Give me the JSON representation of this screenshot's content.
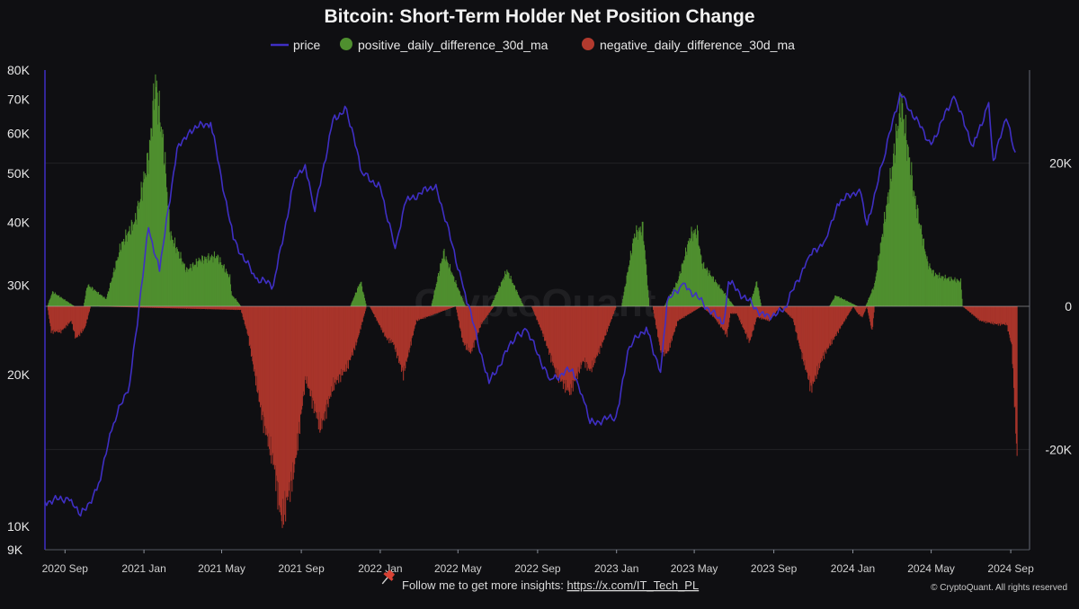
{
  "chart_data": {
    "type": "bar",
    "title": "Bitcoin: Short-Term Holder Net Position Change",
    "legend": {
      "placement": "top-center",
      "entries": [
        {
          "key": "price",
          "label": "price",
          "color": "#3f2fc4",
          "symbol": "line"
        },
        {
          "key": "pos",
          "label": "positive_daily_difference_30d_ma",
          "color": "#4f8f2f",
          "symbol": "circle"
        },
        {
          "key": "neg",
          "label": "negative_daily_difference_30d_ma",
          "color": "#b23a2e",
          "symbol": "circle"
        }
      ]
    },
    "x_axis": {
      "type": "date",
      "range": [
        "2020-08-01",
        "2024-09-30"
      ],
      "ticks": [
        {
          "label": "2020 Sep",
          "date": "2020-09-01"
        },
        {
          "label": "2021 Jan",
          "date": "2021-01-01"
        },
        {
          "label": "2021 May",
          "date": "2021-05-01"
        },
        {
          "label": "2021 Sep",
          "date": "2021-09-01"
        },
        {
          "label": "2022 Jan",
          "date": "2022-01-01"
        },
        {
          "label": "2022 May",
          "date": "2022-05-01"
        },
        {
          "label": "2022 Sep",
          "date": "2022-09-01"
        },
        {
          "label": "2023 Jan",
          "date": "2023-01-01"
        },
        {
          "label": "2023 May",
          "date": "2023-05-01"
        },
        {
          "label": "2023 Sep",
          "date": "2023-09-01"
        },
        {
          "label": "2024 Jan",
          "date": "2024-01-01"
        },
        {
          "label": "2024 May",
          "date": "2024-05-01"
        },
        {
          "label": "2024 Sep",
          "date": "2024-09-01"
        }
      ]
    },
    "y_left": {
      "scale": "log",
      "range": [
        9000,
        80000
      ],
      "ticks": [
        {
          "label": "80K",
          "value": 80000
        },
        {
          "label": "70K",
          "value": 70000
        },
        {
          "label": "60K",
          "value": 60000
        },
        {
          "label": "50K",
          "value": 50000
        },
        {
          "label": "40K",
          "value": 40000
        },
        {
          "label": "30K",
          "value": 30000
        },
        {
          "label": "20K",
          "value": 20000
        },
        {
          "label": "10K",
          "value": 10000
        },
        {
          "label": "9K",
          "value": 9000
        }
      ]
    },
    "y_right": {
      "scale": "linear",
      "range": [
        -34000,
        33000
      ],
      "ticks": [
        {
          "label": "20K",
          "value": 20000
        },
        {
          "label": "0",
          "value": 0
        },
        {
          "label": "-20K",
          "value": -20000
        }
      ]
    },
    "grid": {
      "horizontal": true,
      "vertical": false
    },
    "series": [
      {
        "name": "price",
        "axis": "left",
        "kind": "line",
        "x": [
          "2020-08-01",
          "2020-09-05",
          "2020-09-25",
          "2020-10-20",
          "2020-11-15",
          "2020-12-10",
          "2021-01-08",
          "2021-01-25",
          "2021-02-21",
          "2021-03-13",
          "2021-04-14",
          "2021-05-19",
          "2021-06-22",
          "2021-07-20",
          "2021-08-22",
          "2021-09-07",
          "2021-09-22",
          "2021-10-20",
          "2021-11-10",
          "2021-12-04",
          "2022-01-01",
          "2022-01-24",
          "2022-02-10",
          "2022-03-28",
          "2022-05-12",
          "2022-06-18",
          "2022-07-30",
          "2022-08-15",
          "2022-09-20",
          "2022-10-25",
          "2022-11-09",
          "2022-11-21",
          "2022-12-31",
          "2023-01-21",
          "2023-02-16",
          "2023-03-10",
          "2023-03-20",
          "2023-04-14",
          "2023-06-15",
          "2023-06-23",
          "2023-08-18",
          "2023-09-15",
          "2023-10-24",
          "2023-11-20",
          "2023-12-08",
          "2024-01-11",
          "2024-01-23",
          "2024-02-15",
          "2024-03-14",
          "2024-05-01",
          "2024-06-05",
          "2024-07-05",
          "2024-07-29",
          "2024-08-05",
          "2024-08-25",
          "2024-09-08"
        ],
        "y": [
          11200,
          11400,
          10500,
          11800,
          16000,
          19200,
          39000,
          32000,
          56000,
          61000,
          63000,
          37000,
          31000,
          30000,
          49000,
          52000,
          42000,
          64000,
          67000,
          50000,
          47000,
          35500,
          44000,
          47500,
          29000,
          19200,
          24000,
          24500,
          19500,
          20500,
          18200,
          16000,
          16500,
          22700,
          24800,
          20200,
          27800,
          30300,
          25200,
          30500,
          26000,
          26600,
          34000,
          37000,
          43500,
          46500,
          39500,
          52000,
          72000,
          57000,
          71000,
          56500,
          69000,
          53000,
          64000,
          55000
        ]
      },
      {
        "name": "positive_daily_difference_30d_ma",
        "axis": "right",
        "kind": "bar",
        "x": [
          "2020-08-04",
          "2020-08-12",
          "2020-09-15",
          "2020-09-29",
          "2020-10-05",
          "2020-11-03",
          "2020-11-26",
          "2020-12-18",
          "2021-01-08",
          "2021-01-18",
          "2021-01-31",
          "2021-02-10",
          "2021-03-07",
          "2021-03-28",
          "2021-04-23",
          "2021-05-13",
          "2021-05-16",
          "2021-05-22",
          "2021-05-30",
          "2021-11-15",
          "2021-12-01",
          "2021-12-10",
          "2022-03-20",
          "2022-04-08",
          "2022-05-05",
          "2022-05-12",
          "2022-06-20",
          "2022-07-15",
          "2022-08-10",
          "2022-08-22",
          "2023-01-08",
          "2023-01-28",
          "2023-02-10",
          "2023-02-20",
          "2023-03-15",
          "2023-04-05",
          "2023-04-25",
          "2023-05-05",
          "2023-05-12",
          "2023-07-01",
          "2023-07-25",
          "2023-08-05",
          "2023-08-12",
          "2023-11-01",
          "2023-11-25",
          "2023-12-05",
          "2024-01-08",
          "2024-01-20",
          "2024-02-03",
          "2024-02-25",
          "2024-03-15",
          "2024-04-05",
          "2024-04-25",
          "2024-05-05",
          "2024-05-20",
          "2024-06-15",
          "2024-06-18"
        ],
        "y": [
          0,
          2000,
          0,
          0,
          3000,
          1000,
          8500,
          12000,
          21000,
          31500,
          22000,
          10000,
          5000,
          6500,
          7000,
          4000,
          1500,
          1000,
          0,
          0,
          3500,
          0,
          0,
          7500,
          1500,
          0,
          0,
          5000,
          0,
          0,
          0,
          10000,
          11000,
          0,
          0,
          3500,
          10000,
          10500,
          6000,
          0,
          0,
          3500,
          0,
          0,
          0,
          1500,
          0,
          0,
          3000,
          16000,
          28500,
          15000,
          6000,
          4500,
          4000,
          3500,
          0
        ]
      },
      {
        "name": "negative_daily_difference_30d_ma",
        "axis": "right",
        "kind": "bar",
        "x": [
          "2020-08-04",
          "2020-08-10",
          "2020-08-25",
          "2020-09-10",
          "2020-09-17",
          "2020-10-01",
          "2020-10-10",
          "2021-05-30",
          "2021-06-10",
          "2021-07-01",
          "2021-07-20",
          "2021-08-01",
          "2021-08-20",
          "2021-09-07",
          "2021-09-30",
          "2021-10-20",
          "2021-11-10",
          "2021-11-25",
          "2021-12-10",
          "2021-12-15",
          "2022-01-10",
          "2022-01-20",
          "2022-02-05",
          "2022-02-25",
          "2022-04-27",
          "2022-05-08",
          "2022-05-20",
          "2022-06-05",
          "2022-06-25",
          "2022-08-22",
          "2022-09-07",
          "2022-09-30",
          "2022-10-20",
          "2022-11-10",
          "2022-11-21",
          "2022-12-10",
          "2022-12-31",
          "2023-02-25",
          "2023-03-10",
          "2023-03-20",
          "2023-04-05",
          "2023-05-12",
          "2023-05-31",
          "2023-06-20",
          "2023-06-25",
          "2023-07-05",
          "2023-07-25",
          "2023-08-05",
          "2023-08-25",
          "2023-09-10",
          "2023-09-30",
          "2023-10-10",
          "2023-10-28",
          "2023-11-15",
          "2024-01-01",
          "2024-01-08",
          "2024-01-15",
          "2024-01-22",
          "2024-01-30",
          "2024-02-03",
          "2024-06-18",
          "2024-07-15",
          "2024-08-10",
          "2024-08-25",
          "2024-09-02",
          "2024-09-10"
        ],
        "y": [
          0,
          -3500,
          -3500,
          -2000,
          -4500,
          -3000,
          0,
          -500,
          -4000,
          -15000,
          -22000,
          -30000,
          -23000,
          -10000,
          -17000,
          -11000,
          -8500,
          -5000,
          0,
          0,
          -4500,
          -5000,
          -9500,
          -2000,
          0,
          -5000,
          -6500,
          -2500,
          0,
          0,
          -3500,
          -9500,
          -12000,
          -7500,
          -9000,
          -5000,
          0,
          0,
          -6500,
          -6500,
          -2000,
          0,
          -1500,
          -4000,
          -1000,
          -1000,
          -5000,
          -1500,
          -2000,
          0,
          -1800,
          -5500,
          -11500,
          -7000,
          0,
          -1000,
          -1500,
          0,
          -3500,
          0,
          0,
          -2000,
          -2500,
          -2500,
          -5500,
          -21000
        ]
      }
    ]
  },
  "footer": {
    "credit_text": "Follow me to get more insights:",
    "credit_link": "https://x.com/IT_Tech_PL",
    "copyright": "© CryptoQuant. All rights reserved"
  },
  "watermark": "CryptoQuant"
}
